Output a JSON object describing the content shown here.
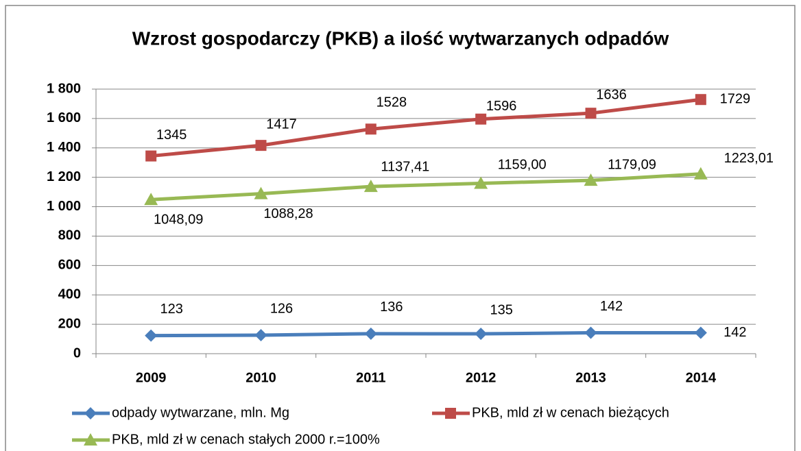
{
  "chart_data": {
    "type": "line",
    "title": "Wzrost gospodarczy (PKB) a ilość wytwarzanych odpadów",
    "categories": [
      "2009",
      "2010",
      "2011",
      "2012",
      "2013",
      "2014"
    ],
    "series": [
      {
        "name": "odpady wytwarzane, mln. Mg",
        "color": "#4a7ebb",
        "marker": "diamond",
        "values": [
          123,
          126,
          136,
          135,
          142,
          142
        ]
      },
      {
        "name": "PKB, mld zł w cenach bieżących",
        "color": "#be4b48",
        "marker": "square",
        "values": [
          1345,
          1417,
          1528,
          1596,
          1636,
          1729
        ]
      },
      {
        "name": "PKB, mld zł w cenach stałych 2000 r.=100%",
        "color": "#98b954",
        "marker": "triangle",
        "values": [
          1048.09,
          1088.28,
          1137.41,
          1159.0,
          1179.09,
          1223.01
        ],
        "value_labels": [
          "1048,09",
          "1088,28",
          "1137,41",
          "1159,00",
          "1179,09",
          "1223,01"
        ]
      }
    ],
    "ylim": [
      0,
      1800
    ],
    "yticks": [
      0,
      200,
      400,
      600,
      800,
      {
        "value": 1000,
        "label": "1 000"
      },
      {
        "value": 1200,
        "label": "1 200"
      },
      {
        "value": 1400,
        "label": "1 400"
      },
      {
        "value": 1600,
        "label": "1 600"
      },
      {
        "value": 1800,
        "label": "1 800"
      }
    ],
    "grid": true
  }
}
